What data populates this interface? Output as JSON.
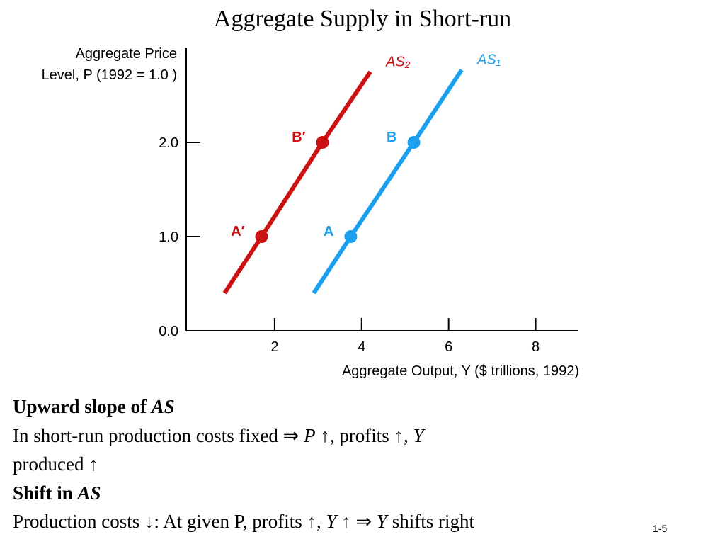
{
  "title": "Aggregate Supply in Short-run",
  "chart_data": {
    "type": "line",
    "y_label_lines": [
      "Aggregate Price",
      "Level, P (1992 = 1.0 )"
    ],
    "x_label": "Aggregate Output, Y  ($ trillions, 1992)",
    "xlim": [
      0,
      9
    ],
    "xticks": [
      2,
      4,
      6,
      8
    ],
    "ylim": [
      0,
      3
    ],
    "yticks": [
      {
        "value": 0,
        "label": "0.0"
      },
      {
        "value": 1,
        "label": "1.0"
      },
      {
        "value": 2,
        "label": "2.0"
      }
    ],
    "series": [
      {
        "name": "AS₂",
        "color": "#cc1111",
        "x": [
          0.85,
          1.7,
          3.1,
          4.2
        ],
        "values": [
          0.4,
          1.0,
          2.0,
          2.75
        ],
        "points": [
          {
            "label": "A′",
            "x": 1.7,
            "y": 1.0
          },
          {
            "label": "B′",
            "x": 3.1,
            "y": 2.0
          }
        ]
      },
      {
        "name": "AS₁",
        "color": "#1aa0ee",
        "x": [
          2.9,
          3.75,
          5.2,
          6.3
        ],
        "values": [
          0.4,
          1.0,
          2.0,
          2.77
        ],
        "points": [
          {
            "label": "A",
            "x": 3.75,
            "y": 1.0
          },
          {
            "label": "B",
            "x": 5.2,
            "y": 2.0
          }
        ]
      }
    ]
  },
  "notes": [
    [
      "Upward slope of ",
      "AS"
    ],
    [
      "In short-run production costs fixed ⇒ ",
      "P",
      " ↑, profits ↑, ",
      "Y"
    ],
    [
      "produced ↑"
    ],
    [
      "Shift in ",
      "AS"
    ],
    [
      "Production costs ↓: At given P, profits ↑, ",
      "Y",
      " ↑ ⇒ ",
      "Y",
      " shifts right"
    ]
  ],
  "page_number": "1-5"
}
